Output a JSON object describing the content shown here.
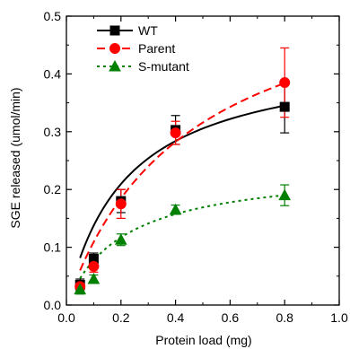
{
  "chart_data": {
    "type": "scatter",
    "xlabel": "Protein load (mg)",
    "ylabel": "SGE released (umol/min)",
    "xlim": [
      0.0,
      1.0
    ],
    "ylim": [
      0.0,
      0.5
    ],
    "x_ticks": [
      "0.0",
      "0.2",
      "0.4",
      "0.6",
      "0.8",
      "1.0"
    ],
    "y_ticks": [
      "0.0",
      "0.1",
      "0.2",
      "0.3",
      "0.4",
      "0.5"
    ],
    "x_tick_values": [
      0.0,
      0.2,
      0.4,
      0.6,
      0.8,
      1.0
    ],
    "y_tick_values": [
      0.0,
      0.1,
      0.2,
      0.3,
      0.4,
      0.5
    ],
    "grid": false,
    "legend_position": "top-left",
    "series": [
      {
        "name": "WT",
        "color": "#000000",
        "marker": "square",
        "line_style": "solid",
        "x": [
          0.05,
          0.1,
          0.2,
          0.4,
          0.8
        ],
        "y": [
          0.035,
          0.08,
          0.18,
          0.303,
          0.343
        ],
        "err": [
          0.01,
          0.01,
          0.02,
          0.025,
          0.045
        ],
        "fit_curve": {
          "vmax": 0.44,
          "k": 0.22
        }
      },
      {
        "name": "Parent",
        "color": "#ff0000",
        "marker": "circle",
        "line_style": "dashed",
        "x": [
          0.05,
          0.1,
          0.2,
          0.4,
          0.8
        ],
        "y": [
          0.032,
          0.067,
          0.175,
          0.298,
          0.385
        ],
        "err": [
          0.008,
          0.01,
          0.025,
          0.02,
          0.06
        ],
        "fit_curve": {
          "vmax": 0.6,
          "k": 0.45
        }
      },
      {
        "name": "S-mutant",
        "color": "#008000",
        "marker": "triangle",
        "line_style": "dotted",
        "x": [
          0.05,
          0.1,
          0.2,
          0.4,
          0.8
        ],
        "y": [
          0.027,
          0.045,
          0.113,
          0.165,
          0.19
        ],
        "err": [
          0.008,
          0.007,
          0.01,
          0.008,
          0.018
        ],
        "fit_curve": {
          "vmax": 0.24,
          "k": 0.21
        }
      }
    ]
  }
}
